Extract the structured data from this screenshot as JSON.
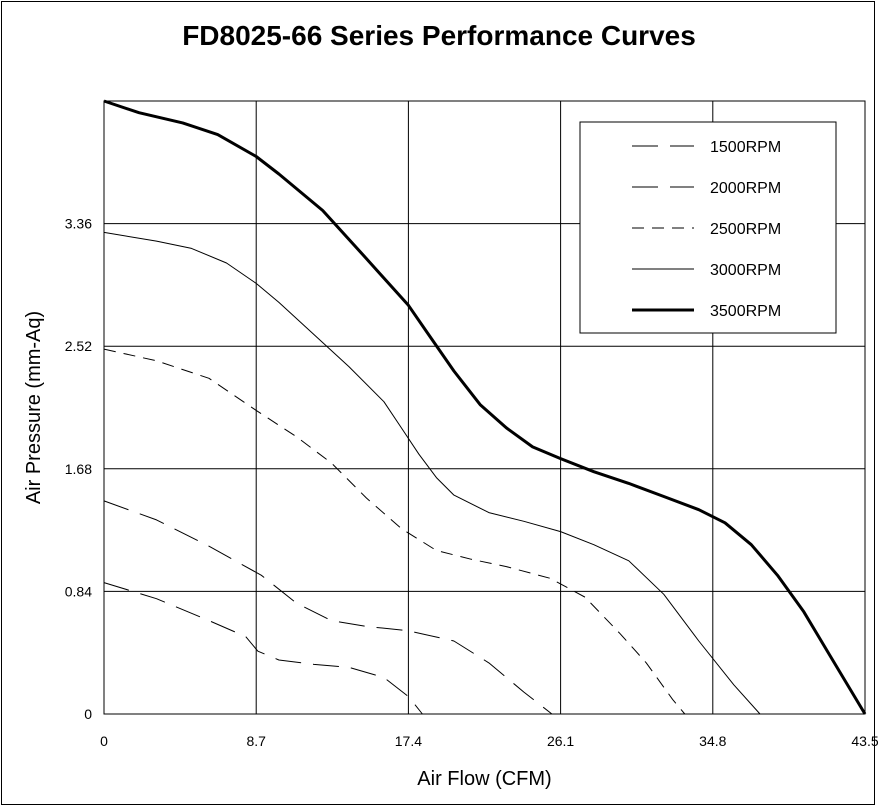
{
  "chart_data": {
    "type": "line",
    "title": "FD8025-66 Series Performance Curves",
    "xlabel": "Air Flow (CFM)",
    "ylabel": "Air Pressure (mm-Aq)",
    "xlim": [
      0,
      43.5
    ],
    "ylim": [
      0,
      4.2
    ],
    "x_ticks": [
      "0",
      "8.7",
      "17.4",
      "26.1",
      "34.8",
      "43.5"
    ],
    "y_ticks": [
      "0",
      "0.84",
      "1.68",
      "2.52",
      "3.36"
    ],
    "grid": true,
    "legend_position": "top-right",
    "series": [
      {
        "name": "1500RPM",
        "style": "long-dash",
        "points": [
          [
            0,
            0.9
          ],
          [
            3,
            0.79
          ],
          [
            6,
            0.64
          ],
          [
            8.1,
            0.53
          ],
          [
            8.8,
            0.43
          ],
          [
            10,
            0.37
          ],
          [
            12,
            0.34
          ],
          [
            14,
            0.32
          ],
          [
            16,
            0.25
          ],
          [
            17.4,
            0.12
          ],
          [
            18.2,
            0
          ]
        ]
      },
      {
        "name": "2000RPM",
        "style": "long-dash",
        "points": [
          [
            0,
            1.46
          ],
          [
            3,
            1.33
          ],
          [
            6,
            1.15
          ],
          [
            9,
            0.95
          ],
          [
            11,
            0.76
          ],
          [
            13,
            0.64
          ],
          [
            15,
            0.6
          ],
          [
            17.4,
            0.57
          ],
          [
            20,
            0.5
          ],
          [
            22,
            0.35
          ],
          [
            24,
            0.15
          ],
          [
            25.6,
            0
          ]
        ]
      },
      {
        "name": "2500RPM",
        "style": "short-dash",
        "points": [
          [
            0,
            2.5
          ],
          [
            3,
            2.42
          ],
          [
            6,
            2.3
          ],
          [
            8.7,
            2.08
          ],
          [
            11,
            1.9
          ],
          [
            13,
            1.72
          ],
          [
            15,
            1.48
          ],
          [
            17,
            1.27
          ],
          [
            19,
            1.12
          ],
          [
            21,
            1.06
          ],
          [
            23,
            1.01
          ],
          [
            25.5,
            0.93
          ],
          [
            27.5,
            0.8
          ],
          [
            29.5,
            0.55
          ],
          [
            31,
            0.35
          ],
          [
            32.5,
            0.1
          ],
          [
            33.2,
            0
          ]
        ]
      },
      {
        "name": "3000RPM",
        "style": "solid-thin",
        "points": [
          [
            0,
            3.3
          ],
          [
            3,
            3.24
          ],
          [
            5,
            3.19
          ],
          [
            7,
            3.09
          ],
          [
            8.7,
            2.95
          ],
          [
            10,
            2.82
          ],
          [
            12,
            2.6
          ],
          [
            14,
            2.38
          ],
          [
            16,
            2.14
          ],
          [
            17,
            1.96
          ],
          [
            18,
            1.78
          ],
          [
            19,
            1.62
          ],
          [
            20,
            1.5
          ],
          [
            22,
            1.38
          ],
          [
            24,
            1.32
          ],
          [
            26.1,
            1.25
          ],
          [
            28,
            1.16
          ],
          [
            30,
            1.05
          ],
          [
            32,
            0.82
          ],
          [
            34,
            0.5
          ],
          [
            36,
            0.2
          ],
          [
            37.5,
            0
          ]
        ]
      },
      {
        "name": "3500RPM",
        "style": "solid-thick",
        "points": [
          [
            0,
            4.2
          ],
          [
            2,
            4.12
          ],
          [
            4.5,
            4.05
          ],
          [
            6.5,
            3.97
          ],
          [
            8.7,
            3.82
          ],
          [
            10,
            3.7
          ],
          [
            12.5,
            3.45
          ],
          [
            15,
            3.12
          ],
          [
            17.4,
            2.8
          ],
          [
            18.5,
            2.61
          ],
          [
            20,
            2.35
          ],
          [
            21.5,
            2.12
          ],
          [
            23,
            1.96
          ],
          [
            24.5,
            1.83
          ],
          [
            26.1,
            1.75
          ],
          [
            28,
            1.66
          ],
          [
            30,
            1.58
          ],
          [
            32,
            1.49
          ],
          [
            34,
            1.4
          ],
          [
            35.5,
            1.31
          ],
          [
            37,
            1.16
          ],
          [
            38.5,
            0.95
          ],
          [
            40,
            0.7
          ],
          [
            41.5,
            0.4
          ],
          [
            43.5,
            0
          ]
        ]
      }
    ]
  }
}
